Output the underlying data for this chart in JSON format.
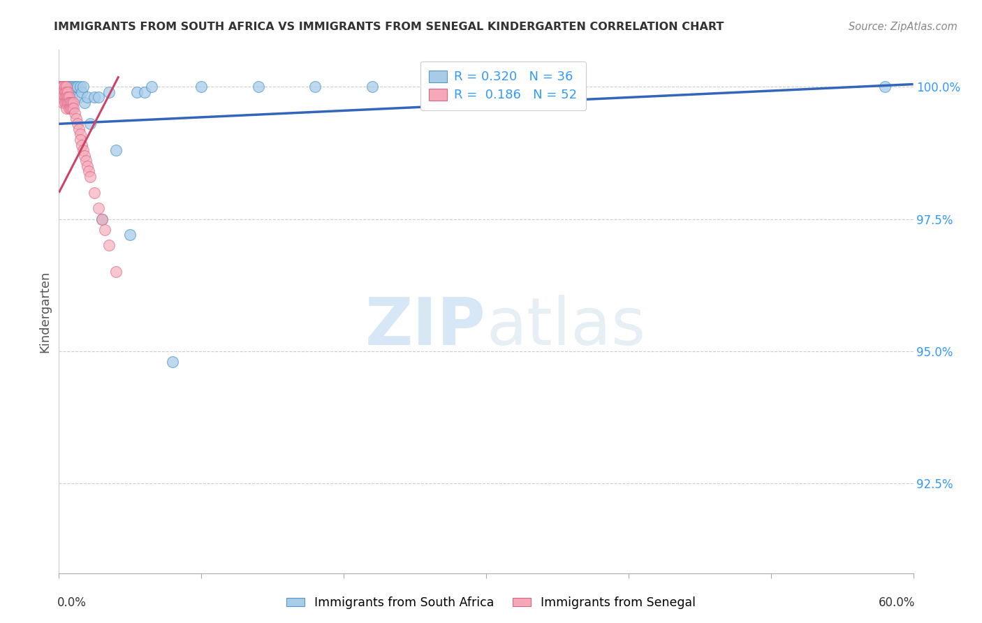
{
  "title": "IMMIGRANTS FROM SOUTH AFRICA VS IMMIGRANTS FROM SENEGAL KINDERGARTEN CORRELATION CHART",
  "source": "Source: ZipAtlas.com",
  "ylabel": "Kindergarten",
  "ytick_labels": [
    "100.0%",
    "97.5%",
    "95.0%",
    "92.5%"
  ],
  "ytick_values": [
    1.0,
    0.975,
    0.95,
    0.925
  ],
  "xlim": [
    0.0,
    0.6
  ],
  "ylim": [
    0.908,
    1.007
  ],
  "legend_label1": "Immigrants from South Africa",
  "legend_label2": "Immigrants from Senegal",
  "R_blue": 0.32,
  "N_blue": 36,
  "R_pink": 0.186,
  "N_pink": 52,
  "color_blue": "#a8cce8",
  "color_pink": "#f4a8b8",
  "edge_blue": "#5599cc",
  "edge_pink": "#dd6688",
  "trendline_blue": "#3366bb",
  "trendline_pink": "#cc4466",
  "background": "#ffffff",
  "watermark_zip": "ZIP",
  "watermark_atlas": "atlas",
  "sa_x": [
    0.001,
    0.002,
    0.003,
    0.004,
    0.005,
    0.006,
    0.007,
    0.008,
    0.008,
    0.009,
    0.01,
    0.011,
    0.012,
    0.013,
    0.014,
    0.015,
    0.016,
    0.017,
    0.018,
    0.02,
    0.022,
    0.025,
    0.028,
    0.03,
    0.035,
    0.04,
    0.05,
    0.055,
    0.06,
    0.065,
    0.08,
    0.1,
    0.14,
    0.18,
    0.22,
    0.58
  ],
  "sa_y": [
    1.0,
    1.0,
    1.0,
    1.0,
    1.0,
    1.0,
    1.0,
    0.999,
    1.0,
    1.0,
    0.999,
    1.0,
    1.0,
    1.0,
    0.998,
    1.0,
    0.999,
    1.0,
    0.997,
    0.998,
    0.993,
    0.998,
    0.998,
    0.975,
    0.999,
    0.988,
    0.972,
    0.999,
    0.999,
    1.0,
    0.948,
    1.0,
    1.0,
    1.0,
    1.0,
    1.0
  ],
  "sen_x": [
    0.001,
    0.001,
    0.001,
    0.002,
    0.002,
    0.002,
    0.002,
    0.003,
    0.003,
    0.003,
    0.003,
    0.003,
    0.004,
    0.004,
    0.004,
    0.004,
    0.005,
    0.005,
    0.005,
    0.005,
    0.005,
    0.006,
    0.006,
    0.006,
    0.007,
    0.007,
    0.007,
    0.008,
    0.008,
    0.009,
    0.009,
    0.01,
    0.01,
    0.011,
    0.012,
    0.013,
    0.014,
    0.015,
    0.015,
    0.016,
    0.017,
    0.018,
    0.019,
    0.02,
    0.021,
    0.022,
    0.025,
    0.028,
    0.03,
    0.032,
    0.035,
    0.04
  ],
  "sen_y": [
    1.0,
    0.999,
    0.998,
    1.0,
    1.0,
    0.999,
    0.998,
    1.0,
    1.0,
    0.999,
    0.998,
    0.997,
    1.0,
    0.999,
    0.998,
    0.997,
    1.0,
    0.999,
    0.998,
    0.997,
    0.996,
    0.999,
    0.998,
    0.997,
    0.998,
    0.997,
    0.996,
    0.997,
    0.996,
    0.997,
    0.996,
    0.997,
    0.996,
    0.995,
    0.994,
    0.993,
    0.992,
    0.991,
    0.99,
    0.989,
    0.988,
    0.987,
    0.986,
    0.985,
    0.984,
    0.983,
    0.98,
    0.977,
    0.975,
    0.973,
    0.97,
    0.965
  ],
  "blue_trend_x": [
    0.0,
    0.6
  ],
  "blue_trend_y": [
    0.993,
    1.0005
  ],
  "pink_trend_x": [
    0.0,
    0.042
  ],
  "pink_trend_y": [
    0.98,
    1.002
  ]
}
